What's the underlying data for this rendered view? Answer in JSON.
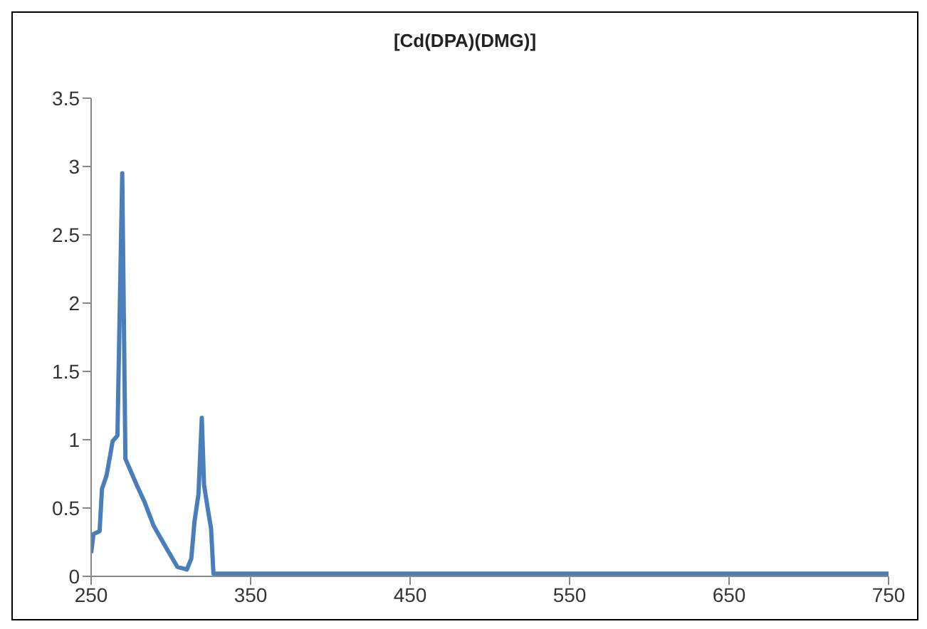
{
  "chart_data": {
    "type": "line",
    "title": "[Cd(DPA)(DMG)]",
    "x": [
      250,
      251.5,
      255.3,
      256.8,
      259.7,
      263.5,
      266.5,
      269.5,
      271.5,
      278.9,
      283.3,
      289.2,
      298,
      304,
      310,
      312.8,
      314.8,
      317.3,
      319.4,
      320.8,
      323.2,
      325.2,
      326.7,
      350,
      450,
      550,
      650,
      750
    ],
    "series": [
      {
        "color": "#4a7ebb",
        "values": [
          0.17,
          0.31,
          0.33,
          0.64,
          0.74,
          0.99,
          1.03,
          2.95,
          0.86,
          0.66,
          0.55,
          0.37,
          0.19,
          0.07,
          0.05,
          0.13,
          0.4,
          0.6,
          1.16,
          0.67,
          0.49,
          0.35,
          0.02,
          0.02,
          0.02,
          0.02,
          0.02,
          0.02
        ]
      }
    ],
    "xlim": [
      250,
      750
    ],
    "xticks": [
      250,
      350,
      450,
      550,
      650,
      750
    ],
    "ylim": [
      0,
      3.5
    ],
    "yticks": [
      0,
      0.5,
      1,
      1.5,
      2,
      2.5,
      3,
      3.5
    ],
    "grid": false,
    "legend": false,
    "marker": "none",
    "line_style": "solid"
  }
}
